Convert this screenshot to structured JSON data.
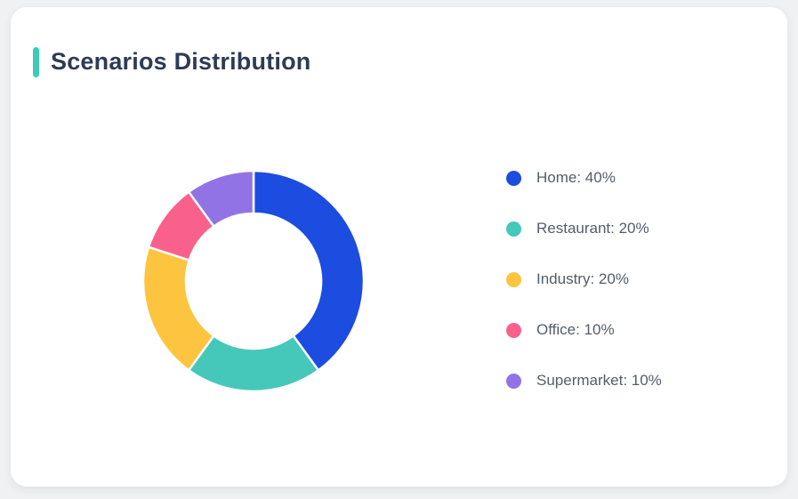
{
  "page": {
    "background_color": "#f0f1f3",
    "card_background": "#ffffff"
  },
  "card": {
    "title": "Scenarios Distribution",
    "accent_color": "#3ec9b8"
  },
  "chart_data": {
    "type": "pie",
    "subtype": "donut",
    "title": "Scenarios Distribution",
    "categories": [
      "Home",
      "Restaurant",
      "Industry",
      "Office",
      "Supermarket"
    ],
    "values": [
      40,
      20,
      20,
      10,
      10
    ],
    "unit": "%",
    "colors": [
      "#1c4ce0",
      "#45c8ba",
      "#fdc53f",
      "#f9618c",
      "#9173e6"
    ],
    "start_angle_deg": 0,
    "direction": "clockwise",
    "inner_radius_ratio": 0.61,
    "slice_border_color": "#ffffff",
    "legend_position": "right",
    "legend_items": [
      {
        "label": "Home: 40%",
        "color": "#1c4ce0"
      },
      {
        "label": "Restaurant: 20%",
        "color": "#45c8ba"
      },
      {
        "label": "Industry: 20%",
        "color": "#fdc53f"
      },
      {
        "label": "Office: 10%",
        "color": "#f9618c"
      },
      {
        "label": "Supermarket: 10%",
        "color": "#9173e6"
      }
    ]
  }
}
